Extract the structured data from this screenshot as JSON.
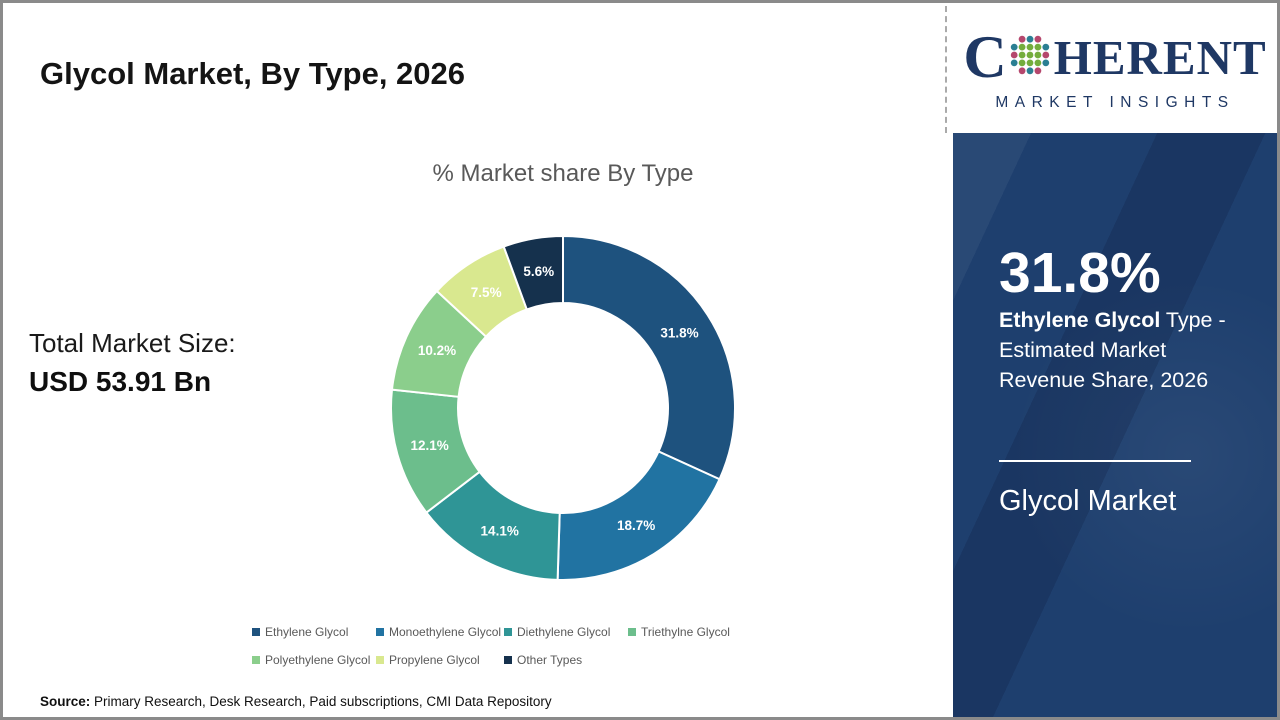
{
  "page": {
    "title": "Glycol Market, By Type, 2026",
    "source_label": "Source:",
    "source_text": " Primary Research, Desk Research, Paid subscriptions, CMI Data Repository"
  },
  "market_size": {
    "label": "Total Market Size:",
    "value": "USD 53.91 Bn"
  },
  "brand": {
    "prefix": "C",
    "suffix": "HERENT",
    "tagline": "MARKET INSIGHTS",
    "navy": "#1f3864",
    "dot_teal": "#2b7f93",
    "dot_pink": "#b5476d",
    "dot_green": "#74ad3d"
  },
  "sidebar": {
    "bg": "#1e3f6e",
    "highlight_value": "31.8%",
    "highlight_bold": "Ethylene Glycol",
    "highlight_rest": " Type - Estimated Market Revenue Share, 2026",
    "footer_title": "Glycol Market"
  },
  "chart_data": {
    "type": "pie",
    "donut": true,
    "title": "% Market share By Type",
    "categories": [
      "Ethylene Glycol",
      "Monoethylene Glycol",
      "Diethylene Glycol",
      "Triethylne Glycol",
      "Polyethylene Glycol",
      "Propylene Glycol",
      "Other Types"
    ],
    "values": [
      31.8,
      18.7,
      14.1,
      12.1,
      10.2,
      7.5,
      5.6
    ],
    "labels": [
      "31.8%",
      "18.7%",
      "14.1%",
      "12.1%",
      "10.2%",
      "7.5%",
      "5.6%"
    ],
    "colors": [
      "#1e527e",
      "#2173a2",
      "#2f9596",
      "#6cbe8c",
      "#8bce8c",
      "#d9e88f",
      "#15314d"
    ],
    "start_angle_deg": -90,
    "direction": "clockwise",
    "legend_position": "bottom",
    "legend_rows": [
      [
        0,
        1,
        2,
        3
      ],
      [
        4,
        5,
        6
      ]
    ]
  }
}
